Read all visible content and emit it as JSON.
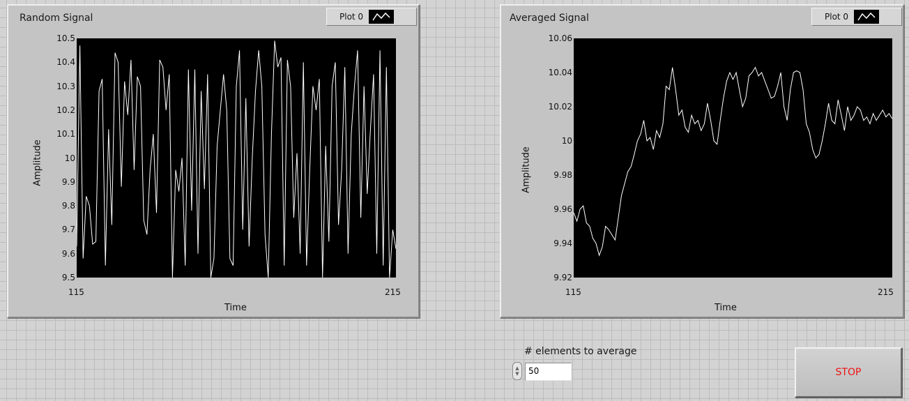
{
  "graphs": [
    {
      "title": "Random Signal",
      "legend": "Plot 0",
      "xlabel": "Time",
      "ylabel": "Amplitude",
      "xlim": [
        115,
        215
      ],
      "ylim": [
        9.5,
        10.5
      ],
      "xticks": [
        "115",
        "215"
      ],
      "yticks": [
        "10.5",
        "10.4",
        "10.3",
        "10.2",
        "10.1",
        "10",
        "9.9",
        "9.8",
        "9.7",
        "9.6",
        "9.5"
      ]
    },
    {
      "title": "Averaged Signal",
      "legend": "Plot 0",
      "xlabel": "Time",
      "ylabel": "Amplitude",
      "xlim": [
        115,
        215
      ],
      "ylim": [
        9.92,
        10.06
      ],
      "xticks": [
        "115",
        "215"
      ],
      "yticks": [
        "10.06",
        "10.04",
        "10.02",
        "10",
        "9.98",
        "9.96",
        "9.94",
        "9.92"
      ]
    }
  ],
  "control": {
    "label": "# elements to average",
    "value": "50"
  },
  "stop_button": {
    "label": "STOP",
    "color": "#e11111"
  },
  "chart_data": [
    {
      "type": "line",
      "title": "Random Signal",
      "xlabel": "Time",
      "ylabel": "Amplitude",
      "xlim": [
        115,
        215
      ],
      "ylim": [
        9.5,
        10.5
      ],
      "series": [
        {
          "name": "Plot 0",
          "x": [
            115,
            116,
            117,
            118,
            119,
            120,
            121,
            122,
            123,
            124,
            125,
            126,
            127,
            128,
            129,
            130,
            131,
            132,
            133,
            134,
            135,
            136,
            137,
            138,
            139,
            140,
            141,
            142,
            143,
            144,
            145,
            146,
            147,
            148,
            149,
            150,
            151,
            152,
            153,
            154,
            155,
            156,
            157,
            158,
            159,
            160,
            161,
            162,
            163,
            164,
            165,
            166,
            167,
            168,
            169,
            170,
            171,
            172,
            173,
            174,
            175,
            176,
            177,
            178,
            179,
            180,
            181,
            182,
            183,
            184,
            185,
            186,
            187,
            188,
            189,
            190,
            191,
            192,
            193,
            194,
            195,
            196,
            197,
            198,
            199,
            200,
            201,
            202,
            203,
            204,
            205,
            206,
            207,
            208,
            209,
            210,
            211,
            212,
            213,
            214,
            215
          ],
          "y": [
            9.63,
            10.47,
            9.58,
            9.84,
            9.8,
            9.64,
            9.65,
            10.28,
            10.33,
            9.55,
            10.12,
            9.72,
            10.44,
            10.4,
            9.88,
            10.32,
            10.18,
            10.41,
            9.95,
            10.34,
            10.3,
            9.74,
            9.68,
            9.95,
            10.1,
            9.77,
            10.41,
            10.38,
            10.2,
            10.35,
            9.5,
            9.95,
            9.86,
            10.0,
            9.55,
            10.37,
            9.78,
            10.37,
            9.6,
            10.28,
            9.87,
            10.35,
            9.5,
            9.58,
            10.05,
            10.2,
            10.35,
            10.2,
            9.58,
            9.55,
            10.3,
            10.45,
            9.7,
            10.25,
            9.63,
            10.0,
            10.28,
            10.45,
            10.3,
            9.68,
            9.5,
            10.1,
            10.49,
            10.38,
            10.42,
            9.55,
            10.41,
            10.3,
            9.75,
            10.02,
            9.6,
            10.4,
            9.55,
            9.95,
            10.3,
            10.2,
            10.33,
            9.5,
            10.05,
            9.65,
            10.3,
            10.4,
            9.72,
            9.95,
            10.38,
            9.6,
            10.1,
            10.3,
            10.45,
            9.75,
            10.3,
            9.85,
            10.12,
            10.35,
            9.6,
            10.45,
            9.55,
            10.38,
            9.5,
            9.7,
            9.62
          ]
        }
      ]
    },
    {
      "type": "line",
      "title": "Averaged Signal",
      "xlabel": "Time",
      "ylabel": "Amplitude",
      "xlim": [
        115,
        215
      ],
      "ylim": [
        9.92,
        10.06
      ],
      "series": [
        {
          "name": "Plot 0",
          "x": [
            115,
            116,
            117,
            118,
            119,
            120,
            121,
            122,
            123,
            124,
            125,
            126,
            127,
            128,
            129,
            130,
            131,
            132,
            133,
            134,
            135,
            136,
            137,
            138,
            139,
            140,
            141,
            142,
            143,
            144,
            145,
            146,
            147,
            148,
            149,
            150,
            151,
            152,
            153,
            154,
            155,
            156,
            157,
            158,
            159,
            160,
            161,
            162,
            163,
            164,
            165,
            166,
            167,
            168,
            169,
            170,
            171,
            172,
            173,
            174,
            175,
            176,
            177,
            178,
            179,
            180,
            181,
            182,
            183,
            184,
            185,
            186,
            187,
            188,
            189,
            190,
            191,
            192,
            193,
            194,
            195,
            196,
            197,
            198,
            199,
            200,
            201,
            202,
            203,
            204,
            205,
            206,
            207,
            208,
            209,
            210,
            211,
            212,
            213,
            214,
            215
          ],
          "y": [
            9.958,
            9.953,
            9.96,
            9.962,
            9.952,
            9.95,
            9.943,
            9.94,
            9.933,
            9.938,
            9.95,
            9.948,
            9.945,
            9.942,
            9.955,
            9.968,
            9.975,
            9.982,
            9.985,
            9.992,
            10.0,
            10.004,
            10.012,
            10.0,
            10.002,
            9.995,
            10.006,
            10.002,
            10.01,
            10.032,
            10.03,
            10.043,
            10.03,
            10.015,
            10.018,
            10.008,
            10.005,
            10.015,
            10.01,
            10.012,
            10.006,
            10.01,
            10.022,
            10.012,
            10.0,
            9.998,
            10.012,
            10.025,
            10.035,
            10.04,
            10.036,
            10.04,
            10.03,
            10.02,
            10.025,
            10.038,
            10.04,
            10.043,
            10.038,
            10.04,
            10.035,
            10.03,
            10.025,
            10.026,
            10.032,
            10.04,
            10.02,
            10.012,
            10.03,
            10.04,
            10.041,
            10.04,
            10.03,
            10.01,
            10.005,
            9.995,
            9.99,
            9.992,
            10.0,
            10.01,
            10.022,
            10.012,
            10.01,
            10.024,
            10.015,
            10.006,
            10.02,
            10.012,
            10.015,
            10.02,
            10.018,
            10.012,
            10.014,
            10.01,
            10.016,
            10.012,
            10.015,
            10.018,
            10.014,
            10.016,
            10.013
          ]
        }
      ]
    }
  ]
}
